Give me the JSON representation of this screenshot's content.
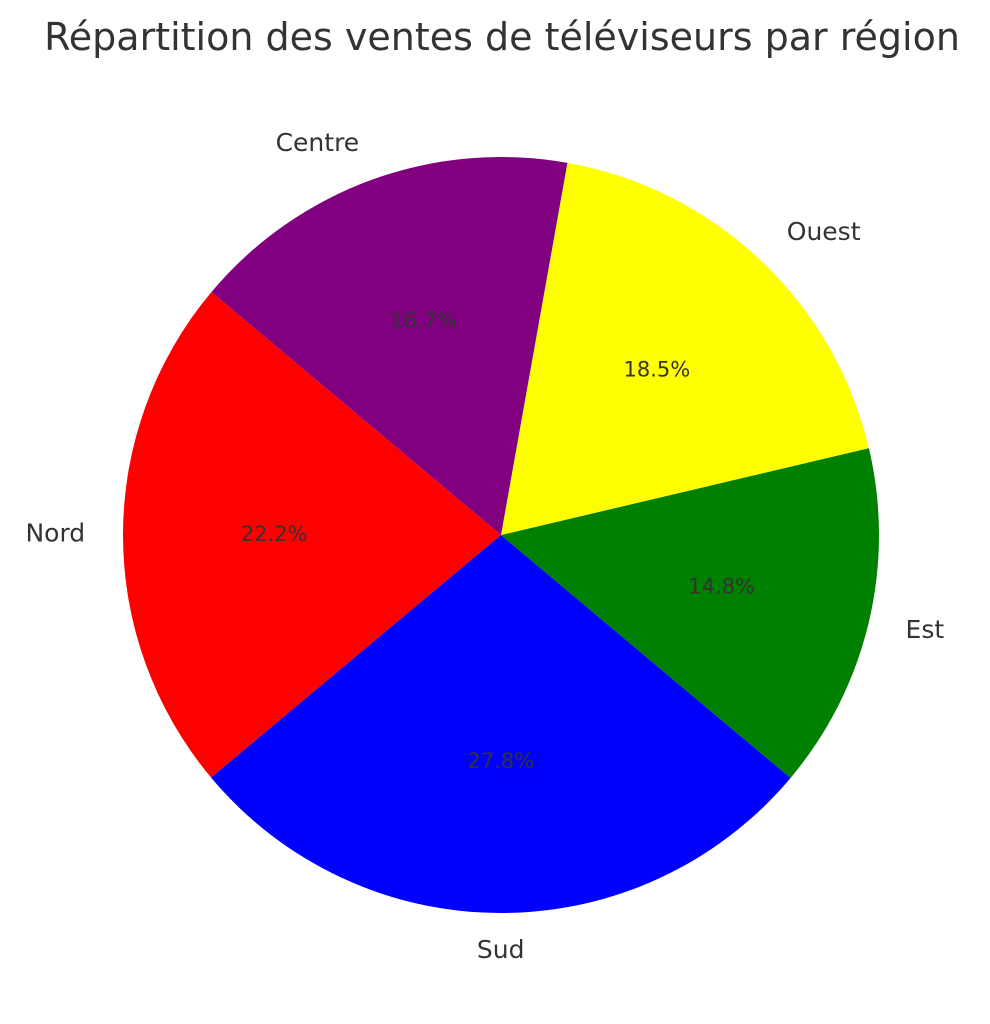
{
  "chart_data": {
    "type": "pie",
    "title": "Répartition des ventes de téléviseurs par région",
    "categories": [
      "Nord",
      "Sud",
      "Est",
      "Ouest",
      "Centre"
    ],
    "values": [
      22.2,
      27.8,
      14.8,
      18.5,
      16.7
    ],
    "value_labels": [
      "22.2%",
      "27.8%",
      "14.8%",
      "18.5%",
      "16.7%"
    ],
    "colors": [
      "#ff0000",
      "#0000ff",
      "#008000",
      "#ffff00",
      "#800080"
    ],
    "start_angle_deg": 140,
    "direction": "counterclockwise",
    "legend": "none"
  }
}
